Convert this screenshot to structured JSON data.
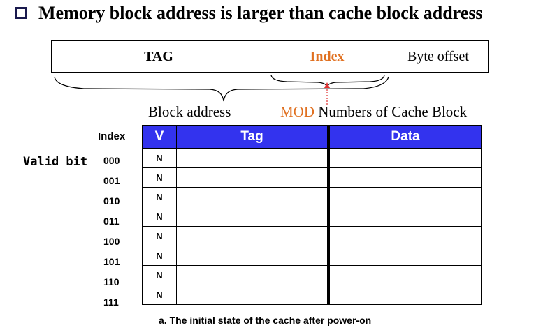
{
  "heading": "Memory block address is larger than cache block address",
  "address": {
    "tag": "TAG",
    "index": "Index",
    "offset": "Byte offset"
  },
  "labels": {
    "block_address": "Block address",
    "mod": "MOD",
    "numbers_of_cache_block": "Numbers of Cache Block",
    "valid_bit": "Valid bit",
    "index_header": "Index"
  },
  "colors": {
    "accent": "#e07020",
    "table_header": "#3333ee",
    "bullet": "#1a1a4e"
  },
  "table": {
    "headers": {
      "v": "V",
      "tag": "Tag",
      "data": "Data"
    },
    "rows": [
      {
        "index": "000",
        "v": "N",
        "tag": "",
        "data": ""
      },
      {
        "index": "001",
        "v": "N",
        "tag": "",
        "data": ""
      },
      {
        "index": "010",
        "v": "N",
        "tag": "",
        "data": ""
      },
      {
        "index": "011",
        "v": "N",
        "tag": "",
        "data": ""
      },
      {
        "index": "100",
        "v": "N",
        "tag": "",
        "data": ""
      },
      {
        "index": "101",
        "v": "N",
        "tag": "",
        "data": ""
      },
      {
        "index": "110",
        "v": "N",
        "tag": "",
        "data": ""
      },
      {
        "index": "111",
        "v": "N",
        "tag": "",
        "data": ""
      }
    ]
  },
  "caption": "a. The initial state of the cache after power-on"
}
